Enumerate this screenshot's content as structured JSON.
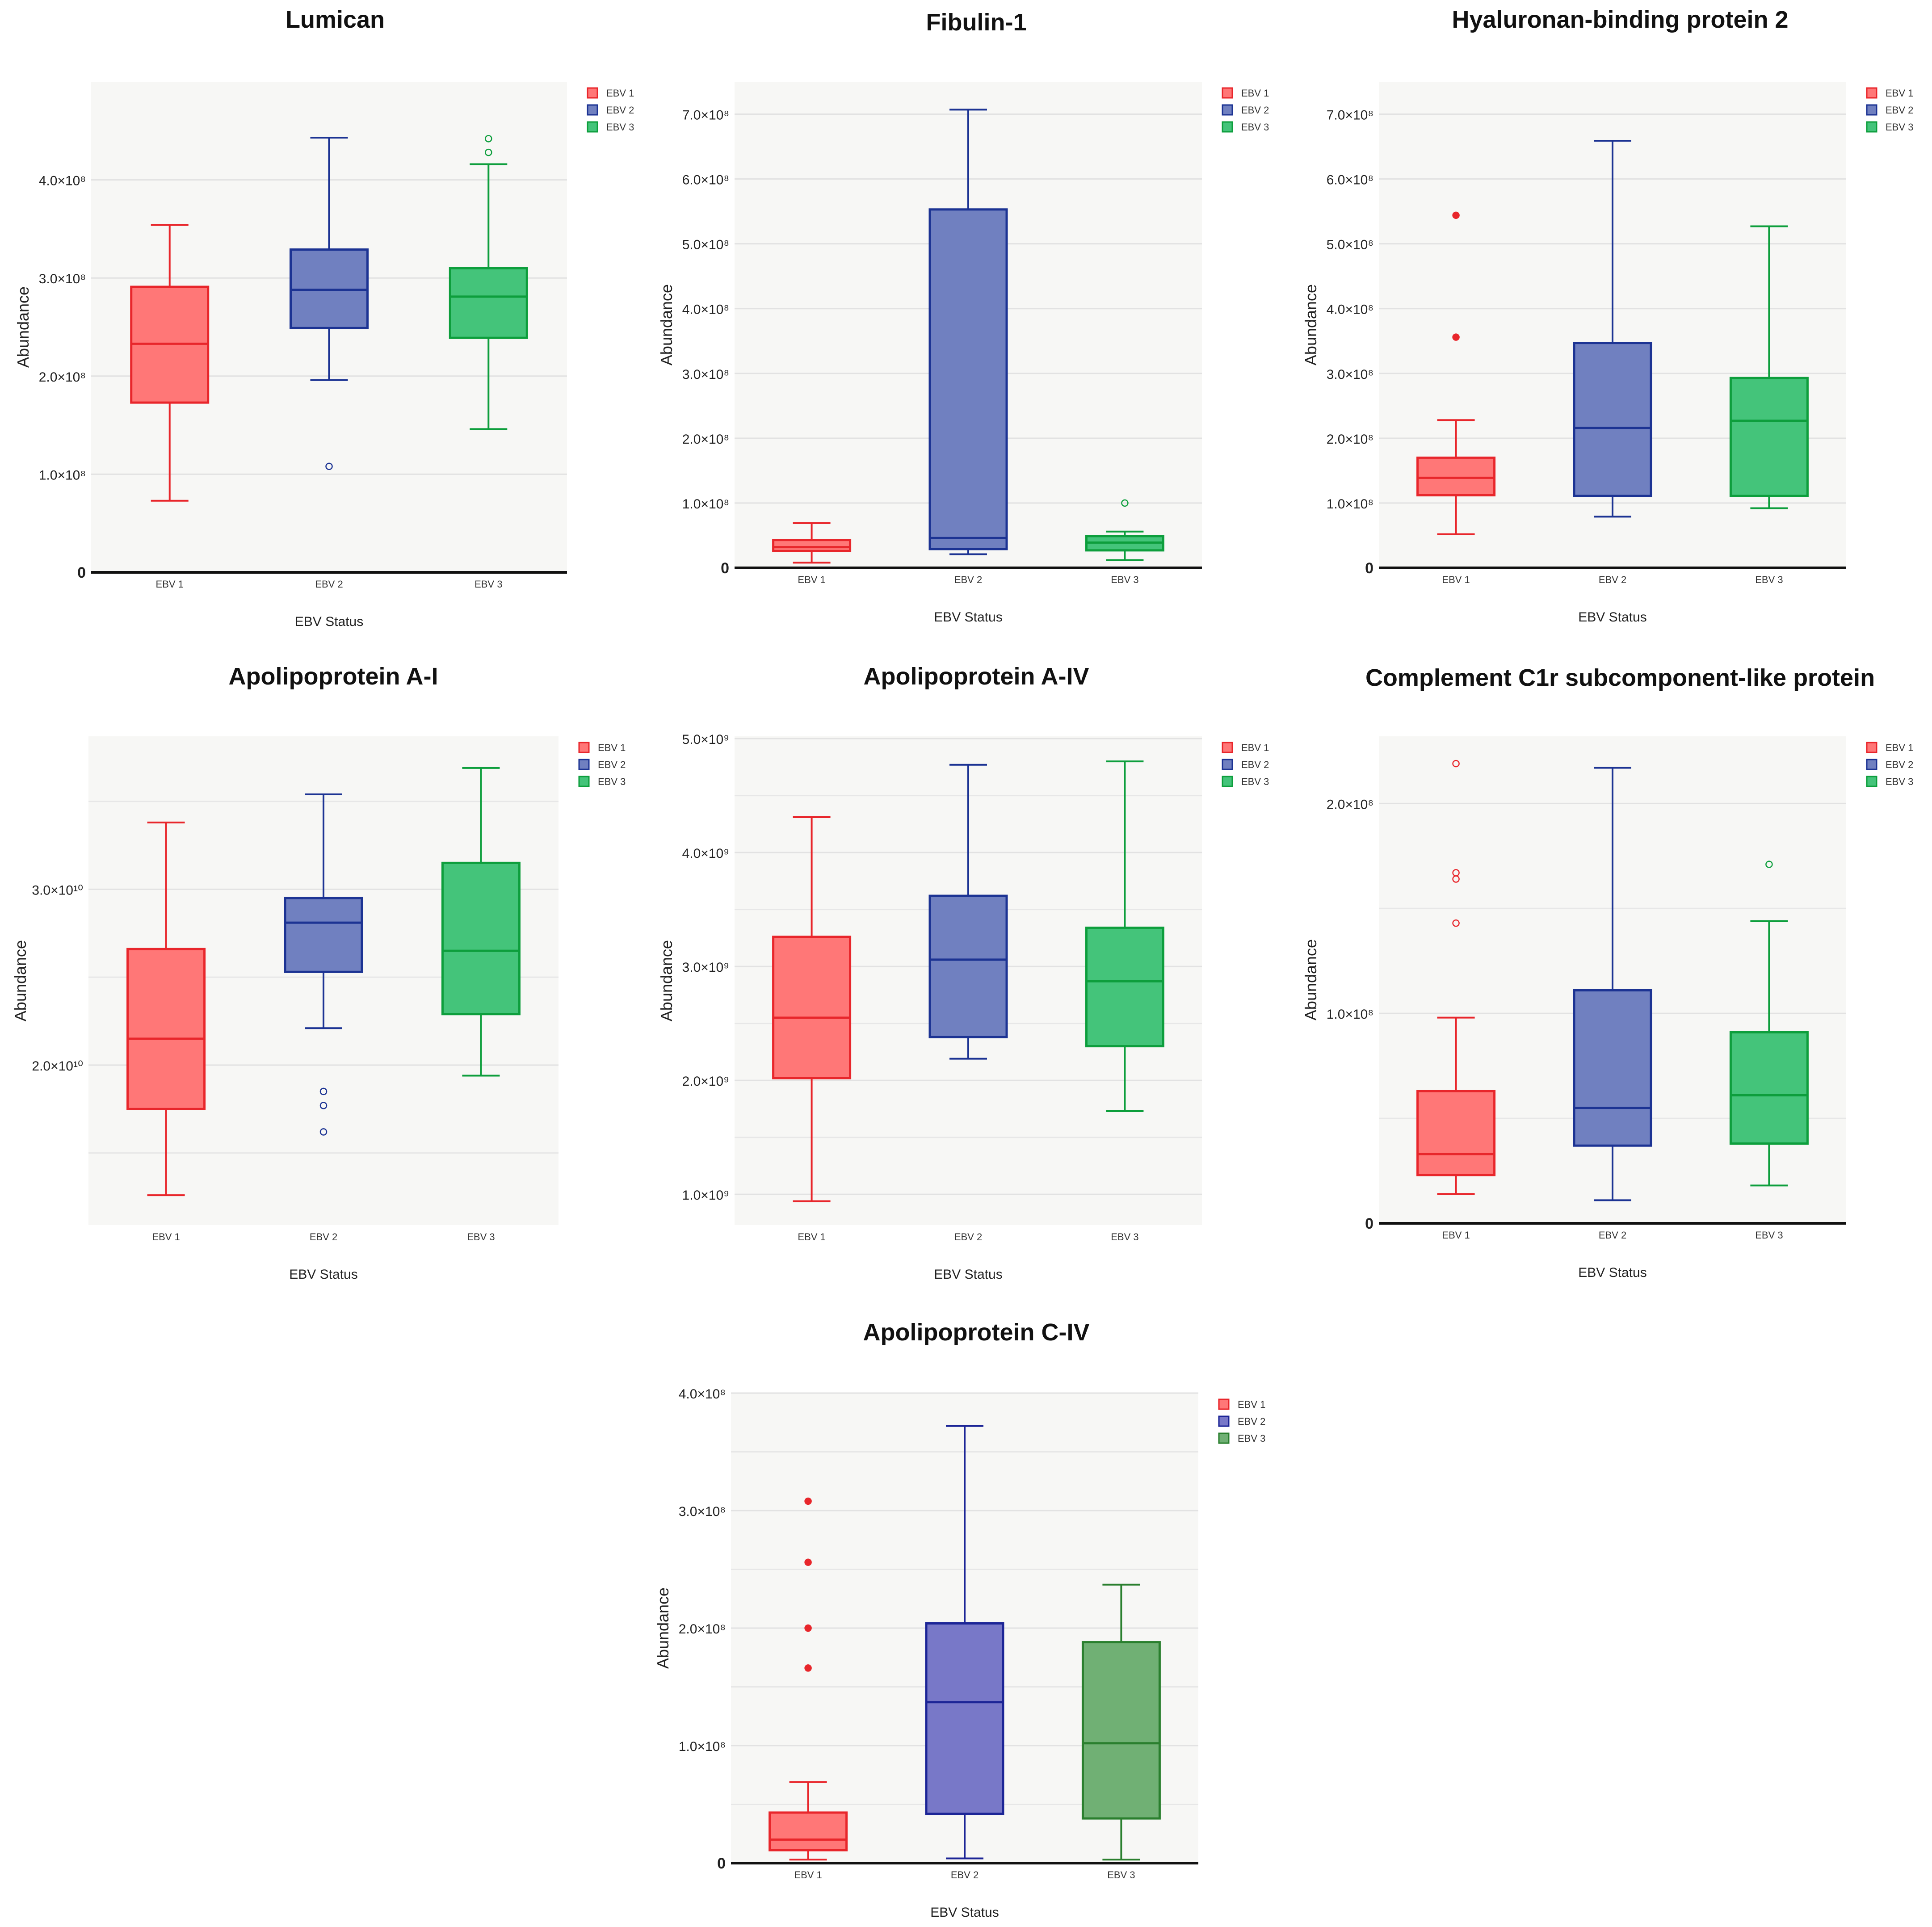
{
  "colors": {
    "EBV 1": {
      "fill": "#ff7777",
      "stroke": "#e8262b"
    },
    "EBV 2": {
      "fill": "#7080c0",
      "stroke": "#1c3393"
    },
    "EBV 3": {
      "fill": "#44c47a",
      "stroke": "#0d9e3c"
    },
    "EBV 3 dark": {
      "fill": "#70b074",
      "stroke": "#2a7f2e"
    },
    "EBV 2 purple": {
      "fill": "#7878c8",
      "stroke": "#1c2596"
    }
  },
  "chart_data": [
    {
      "type": "box",
      "title": "Lumican",
      "xlabel": "EBV Status",
      "ylabel": "Abundance",
      "categories": [
        "EBV 1",
        "EBV 2",
        "EBV 3"
      ],
      "legend": [
        "EBV 1",
        "EBV 2",
        "EBV 3"
      ],
      "ylim": [
        0,
        500000000
      ],
      "y_ticks": [
        {
          "v": 0,
          "l": "0",
          "bold": true
        },
        {
          "v": 100000000,
          "l": "1.0×10⁸"
        },
        {
          "v": 200000000,
          "l": "2.0×10⁸"
        },
        {
          "v": 300000000,
          "l": "3.0×10⁸"
        },
        {
          "v": 400000000,
          "l": "4.0×10⁸"
        }
      ],
      "series": [
        {
          "name": "EBV 1",
          "min": 73000000,
          "q1": 173000000,
          "median": 233000000,
          "q3": 291000000,
          "max": 354000000,
          "outliers": []
        },
        {
          "name": "EBV 2",
          "min": 196000000,
          "q1": 249000000,
          "median": 288000000,
          "q3": 329000000,
          "max": 443000000,
          "outliers": [
            108000000
          ]
        },
        {
          "name": "EBV 3",
          "min": 146000000,
          "q1": 239000000,
          "median": 281000000,
          "q3": 310000000,
          "max": 416000000,
          "outliers": [
            442000000,
            428000000
          ]
        }
      ]
    },
    {
      "type": "box",
      "title": "Fibulin-1",
      "xlabel": "EBV Status",
      "ylabel": "Abundance",
      "categories": [
        "EBV 1",
        "EBV 2",
        "EBV 3"
      ],
      "legend": [
        "EBV 1",
        "EBV 2",
        "EBV 3"
      ],
      "ylim": [
        0,
        750000000
      ],
      "y_ticks": [
        {
          "v": 0,
          "l": "0",
          "bold": true
        },
        {
          "v": 100000000,
          "l": "1.0×10⁸"
        },
        {
          "v": 200000000,
          "l": "2.0×10⁸"
        },
        {
          "v": 300000000,
          "l": "3.0×10⁸"
        },
        {
          "v": 400000000,
          "l": "4.0×10⁸"
        },
        {
          "v": 500000000,
          "l": "5.0×10⁸"
        },
        {
          "v": 600000000,
          "l": "6.0×10⁸"
        },
        {
          "v": 700000000,
          "l": "7.0×10⁸"
        }
      ],
      "series": [
        {
          "name": "EBV 1",
          "min": 8000000,
          "q1": 26000000,
          "median": 32000000,
          "q3": 43000000,
          "max": 69000000,
          "outliers": []
        },
        {
          "name": "EBV 2",
          "min": 21000000,
          "q1": 29000000,
          "median": 46000000,
          "q3": 553000000,
          "max": 707000000,
          "outliers": []
        },
        {
          "name": "EBV 3",
          "min": 12000000,
          "q1": 27000000,
          "median": 39000000,
          "q3": 49000000,
          "max": 56000000,
          "outliers": [
            100000000
          ]
        }
      ]
    },
    {
      "type": "box",
      "title": "Hyaluronan-binding protein 2",
      "xlabel": "EBV Status",
      "ylabel": "Abundance",
      "categories": [
        "EBV 1",
        "EBV 2",
        "EBV 3"
      ],
      "legend": [
        "EBV 1",
        "EBV 2",
        "EBV 3"
      ],
      "ylim": [
        0,
        750000000
      ],
      "y_ticks": [
        {
          "v": 0,
          "l": "0",
          "bold": true
        },
        {
          "v": 100000000,
          "l": "1.0×10⁸"
        },
        {
          "v": 200000000,
          "l": "2.0×10⁸"
        },
        {
          "v": 300000000,
          "l": "3.0×10⁸"
        },
        {
          "v": 400000000,
          "l": "4.0×10⁸"
        },
        {
          "v": 500000000,
          "l": "5.0×10⁸"
        },
        {
          "v": 600000000,
          "l": "6.0×10⁸"
        },
        {
          "v": 700000000,
          "l": "7.0×10⁸"
        }
      ],
      "series": [
        {
          "name": "EBV 1",
          "min": 52000000,
          "q1": 112000000,
          "median": 139000000,
          "q3": 170000000,
          "max": 228000000,
          "outliers": [
            544000000,
            356000000
          ],
          "outlier_style": "filled"
        },
        {
          "name": "EBV 2",
          "min": 79000000,
          "q1": 111000000,
          "median": 216000000,
          "q3": 347000000,
          "max": 659000000,
          "outliers": []
        },
        {
          "name": "EBV 3",
          "min": 92000000,
          "q1": 111000000,
          "median": 227000000,
          "q3": 293000000,
          "max": 527000000,
          "outliers": []
        }
      ]
    },
    {
      "type": "box",
      "title": "Apolipoprotein A-I",
      "xlabel": "EBV Status",
      "ylabel": "Abundance",
      "categories": [
        "EBV 1",
        "EBV 2",
        "EBV 3"
      ],
      "legend": [
        "EBV 1",
        "EBV 2",
        "EBV 3"
      ],
      "ylim": [
        10900000000,
        38700000000
      ],
      "y_ticks": [
        {
          "v": 20000000000,
          "l": "2.0×10¹⁰"
        },
        {
          "v": 30000000000,
          "l": "3.0×10¹⁰"
        }
      ],
      "minor_grid": [
        15000000000,
        25000000000,
        35000000000
      ],
      "series": [
        {
          "name": "EBV 1",
          "min": 12600000000,
          "q1": 17500000000,
          "median": 21500000000,
          "q3": 26600000000,
          "max": 33800000000,
          "outliers": []
        },
        {
          "name": "EBV 2",
          "min": 22100000000,
          "q1": 25300000000,
          "median": 28100000000,
          "q3": 29500000000,
          "max": 35400000000,
          "outliers": [
            18500000000,
            17700000000,
            16200000000
          ]
        },
        {
          "name": "EBV 3",
          "min": 19400000000,
          "q1": 22900000000,
          "median": 26500000000,
          "q3": 31500000000,
          "max": 36900000000,
          "outliers": []
        }
      ]
    },
    {
      "type": "box",
      "title": "Apolipoprotein A-IV",
      "xlabel": "EBV Status",
      "ylabel": "Abundance",
      "categories": [
        "EBV 1",
        "EBV 2",
        "EBV 3"
      ],
      "legend": [
        "EBV 1",
        "EBV 2",
        "EBV 3"
      ],
      "ylim": [
        730000000,
        5020000000
      ],
      "y_ticks": [
        {
          "v": 1000000000,
          "l": "1.0×10⁹"
        },
        {
          "v": 2000000000,
          "l": "2.0×10⁹"
        },
        {
          "v": 3000000000,
          "l": "3.0×10⁹"
        },
        {
          "v": 4000000000,
          "l": "4.0×10⁹"
        },
        {
          "v": 5000000000,
          "l": "5.0×10⁹"
        }
      ],
      "minor_grid": [
        1500000000,
        2500000000,
        3500000000,
        4500000000
      ],
      "series": [
        {
          "name": "EBV 1",
          "min": 940000000,
          "q1": 2020000000,
          "median": 2550000000,
          "q3": 3260000000,
          "max": 4310000000,
          "outliers": []
        },
        {
          "name": "EBV 2",
          "min": 2190000000,
          "q1": 2380000000,
          "median": 3060000000,
          "q3": 3620000000,
          "max": 4770000000,
          "outliers": []
        },
        {
          "name": "EBV 3",
          "min": 1730000000,
          "q1": 2300000000,
          "median": 2870000000,
          "q3": 3340000000,
          "max": 4800000000,
          "outliers": []
        }
      ]
    },
    {
      "type": "box",
      "title": "Complement C1r subcomponent-like protein",
      "xlabel": "EBV Status",
      "ylabel": "Abundance",
      "categories": [
        "EBV 1",
        "EBV 2",
        "EBV 3"
      ],
      "legend": [
        "EBV 1",
        "EBV 2",
        "EBV 3"
      ],
      "ylim": [
        0,
        232000000
      ],
      "y_ticks": [
        {
          "v": 0,
          "l": "0",
          "bold": true
        },
        {
          "v": 100000000,
          "l": "1.0×10⁸"
        },
        {
          "v": 200000000,
          "l": "2.0×10⁸"
        }
      ],
      "minor_grid": [
        50000000,
        150000000
      ],
      "series": [
        {
          "name": "EBV 1",
          "min": 14000000,
          "q1": 23000000,
          "median": 33000000,
          "q3": 63000000,
          "max": 98000000,
          "outliers": [
            219000000,
            167000000,
            164000000,
            143000000
          ]
        },
        {
          "name": "EBV 2",
          "min": 11000000,
          "q1": 37000000,
          "median": 55000000,
          "q3": 111000000,
          "max": 217000000,
          "outliers": []
        },
        {
          "name": "EBV 3",
          "min": 18000000,
          "q1": 38000000,
          "median": 61000000,
          "q3": 91000000,
          "max": 144000000,
          "outliers": [
            171000000
          ]
        }
      ]
    },
    {
      "type": "box",
      "title": "Apolipoprotein C-IV",
      "xlabel": "EBV Status",
      "ylabel": "Abundance",
      "categories": [
        "EBV 1",
        "EBV 2",
        "EBV 3"
      ],
      "legend": [
        "EBV 1",
        "EBV 2",
        "EBV 3"
      ],
      "ylim": [
        0,
        400000000
      ],
      "y_ticks": [
        {
          "v": 0,
          "l": "0",
          "bold": true
        },
        {
          "v": 100000000,
          "l": "1.0×10⁸"
        },
        {
          "v": 200000000,
          "l": "2.0×10⁸"
        },
        {
          "v": 300000000,
          "l": "3.0×10⁸"
        },
        {
          "v": 400000000,
          "l": "4.0×10⁸"
        }
      ],
      "minor_grid": [
        50000000,
        150000000,
        250000000,
        350000000
      ],
      "palette": [
        "EBV 1",
        "EBV 2 purple",
        "EBV 3 dark"
      ],
      "series": [
        {
          "name": "EBV 1",
          "min": 3000000,
          "q1": 11000000,
          "median": 20000000,
          "q3": 43000000,
          "max": 69000000,
          "outliers": [
            308000000,
            256000000,
            200000000,
            166000000
          ],
          "outlier_style": "filled"
        },
        {
          "name": "EBV 2",
          "min": 4000000,
          "q1": 42000000,
          "median": 137000000,
          "q3": 204000000,
          "max": 372000000,
          "outliers": []
        },
        {
          "name": "EBV 3",
          "min": 3000000,
          "q1": 38000000,
          "median": 102000000,
          "q3": 188000000,
          "max": 237000000,
          "outliers": []
        }
      ]
    }
  ]
}
